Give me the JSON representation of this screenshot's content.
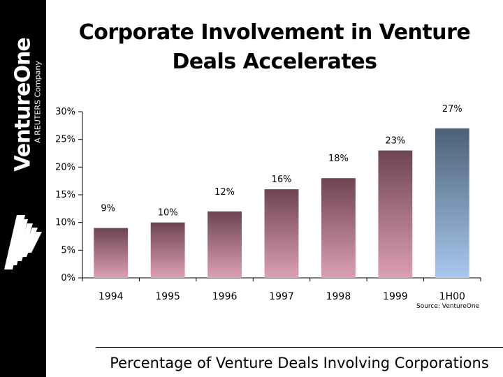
{
  "brand": {
    "name": "VentureOne",
    "tagline": "A REUTERS Company"
  },
  "title": "Corporate Involvement in Venture Deals Accelerates",
  "source_note": "Source: VentureOne",
  "caption": "Percentage of Venture Deals Involving Corporations",
  "colors": {
    "sidebar": "#000000",
    "bar_top": "#6e4452",
    "bar_bottom": "#dc9fb5",
    "highlight_top": "#4d6177",
    "highlight_bottom": "#a8c8ef"
  },
  "chart_data": {
    "type": "bar",
    "categories": [
      "1994",
      "1995",
      "1996",
      "1997",
      "1998",
      "1999",
      "1H00"
    ],
    "values": [
      9,
      10,
      12,
      16,
      18,
      23,
      27
    ],
    "data_labels": [
      "9%",
      "10%",
      "12%",
      "16%",
      "18%",
      "23%",
      "27%"
    ],
    "highlight_category": "1H00",
    "ylim": [
      0,
      30
    ],
    "yticks": [
      "0%",
      "5%",
      "10%",
      "15%",
      "20%",
      "25%",
      "30%"
    ],
    "ytick_values": [
      0,
      5,
      10,
      15,
      20,
      25,
      30
    ],
    "grid": false,
    "legend": "none",
    "xlabel": "",
    "ylabel": ""
  }
}
